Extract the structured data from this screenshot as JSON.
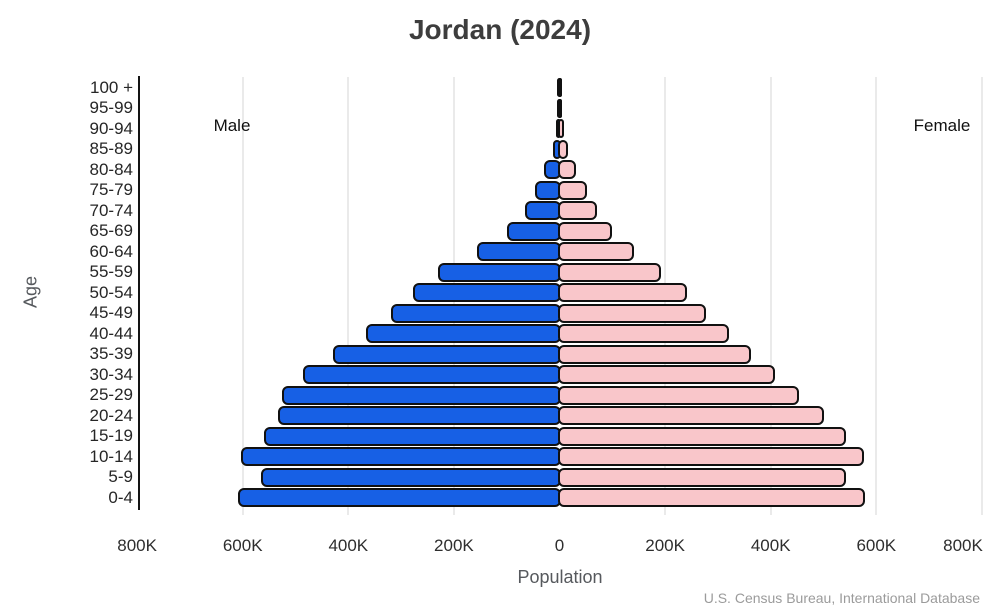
{
  "title": "Jordan (2024)",
  "labels": {
    "male": "Male",
    "female": "Female",
    "x_axis": "Population",
    "y_axis": "Age",
    "source": "U.S. Census Bureau, International Database"
  },
  "colors": {
    "male_bar": "#1760e5",
    "female_bar": "#f9c6ca",
    "bar_outline": "#111111",
    "gridline": "#eaeaea",
    "axis_line": "#141414"
  },
  "chart_data": {
    "type": "bar",
    "subtype": "population-pyramid",
    "title": "Jordan (2024)",
    "xlabel": "Population",
    "ylabel": "Age",
    "source": "U.S. Census Bureau, International Database",
    "xlim_thousands": [
      -800,
      800
    ],
    "grid": true,
    "x_tick_values_thousands": [
      -800,
      -600,
      -400,
      -200,
      0,
      200,
      400,
      600,
      800
    ],
    "x_tick_labels": [
      "800K",
      "600K",
      "400K",
      "200K",
      "0",
      "200K",
      "400K",
      "600K",
      "800K"
    ],
    "age_groups": [
      "100 +",
      "95-99",
      "90-94",
      "85-89",
      "80-84",
      "75-79",
      "70-74",
      "65-69",
      "60-64",
      "55-59",
      "50-54",
      "45-49",
      "40-44",
      "35-39",
      "30-34",
      "25-29",
      "20-24",
      "15-19",
      "10-14",
      "5-9",
      "0-4"
    ],
    "series": [
      {
        "name": "Male",
        "side": "left",
        "color": "#1760e5",
        "values_thousands": [
          0.1,
          0.7,
          2.5,
          9,
          26,
          43,
          62,
          96,
          152,
          227,
          273,
          315,
          362,
          426,
          482,
          521,
          530,
          556,
          599,
          561,
          605
        ]
      },
      {
        "name": "Female",
        "side": "right",
        "color": "#f9c6ca",
        "values_thousands": [
          0.3,
          1.5,
          4.5,
          13,
          28,
          49,
          67,
          96,
          137,
          188,
          238,
          273,
          318,
          358,
          405,
          450,
          498,
          538,
          572,
          539,
          574
        ]
      }
    ]
  }
}
